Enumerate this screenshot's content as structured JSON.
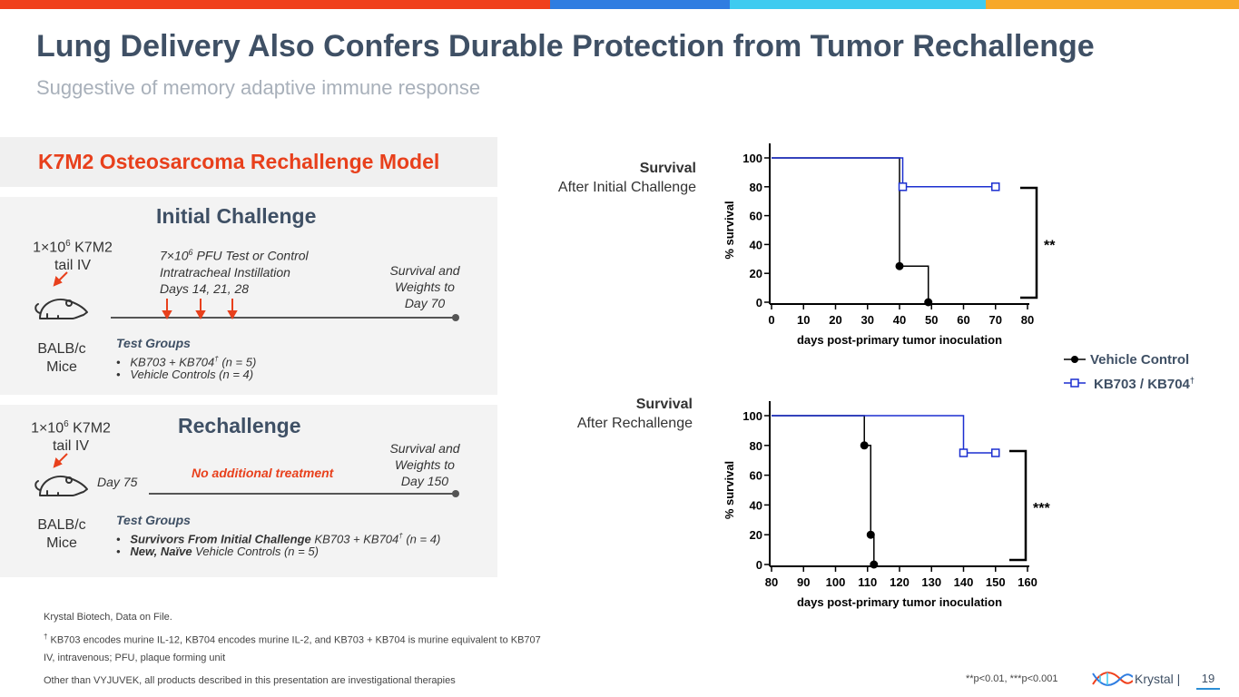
{
  "header": {
    "title": "Lung Delivery Also Confers Durable Protection from Tumor Rechallenge",
    "subtitle": "Suggestive of memory adaptive immune response",
    "topbar_colors": [
      "#f0401c",
      "#2f7de1",
      "#3ecbf0",
      "#f7a829"
    ]
  },
  "model": {
    "title": "K7M2 Osteosarcoma Rechallenge Model"
  },
  "initial": {
    "heading": "Initial Challenge",
    "dose_line1": "1×10",
    "dose_sup": "6",
    "dose_line1_rest": " K7M2",
    "dose_line2": "tail IV",
    "treat_line1": "7×10",
    "treat_sup": "6",
    "treat_line1_rest": " PFU Test or Control",
    "treat_line2": "Intratracheal Instillation",
    "treat_line3": "Days 14, 21, 28",
    "survival_line1": "Survival and",
    "survival_line2": "Weights to",
    "survival_line3": "Day 70",
    "mice_line1": "BALB/c",
    "mice_line2": "Mice",
    "groups_title": "Test Groups",
    "group1": "KB703 + KB704",
    "group1_sup": "†",
    "group1_rest": " (n = 5)",
    "group2": "Vehicle Controls (n = 4)"
  },
  "rechallenge": {
    "heading": "Rechallenge",
    "dose_line1": "1×10",
    "dose_sup": "6",
    "dose_line1_rest": " K7M2",
    "dose_line2": "tail IV",
    "day_label": "Day 75",
    "no_treatment": "No additional treatment",
    "survival_line1": "Survival and",
    "survival_line2": "Weights to",
    "survival_line3": "Day 150",
    "mice_line1": "BALB/c",
    "mice_line2": "Mice",
    "groups_title": "Test Groups",
    "group1_bold": "Survivors From Initial Challenge",
    "group1_rest": " KB703 + KB704",
    "group1_sup": "†",
    "group1_end": " (n = 4)",
    "group2_bold": "New, Naïve",
    "group2_rest": " Vehicle Controls (n = 5)"
  },
  "chart_labels": {
    "c1_line1": "Survival",
    "c1_line2": "After Initial Challenge",
    "c2_line1": "Survival",
    "c2_line2": "After Rechallenge"
  },
  "legend": {
    "vehicle": "Vehicle Control",
    "kb": "KB703 / KB704",
    "kb_sup": "†"
  },
  "chart_data": [
    {
      "type": "line",
      "title": "",
      "xlabel": "days post-primary tumor inoculation",
      "ylabel": "% survival",
      "xlim": [
        0,
        80
      ],
      "ylim": [
        0,
        100
      ],
      "xticks": [
        0,
        10,
        20,
        30,
        40,
        50,
        60,
        70,
        80
      ],
      "yticks": [
        0,
        20,
        40,
        60,
        80,
        100
      ],
      "significance": "**",
      "series": [
        {
          "name": "Vehicle Control",
          "color": "#000000",
          "marker": "circle",
          "steps": [
            [
              0,
              100
            ],
            [
              40,
              100
            ],
            [
              40,
              25
            ],
            [
              49,
              25
            ],
            [
              49,
              0
            ]
          ],
          "points": [
            [
              40,
              25
            ],
            [
              49,
              0
            ]
          ]
        },
        {
          "name": "KB703 / KB704",
          "color": "#1b2fd0",
          "marker": "square",
          "steps": [
            [
              0,
              100
            ],
            [
              41,
              100
            ],
            [
              41,
              80
            ],
            [
              70,
              80
            ]
          ],
          "points": [
            [
              41,
              80
            ],
            [
              70,
              80
            ]
          ]
        }
      ]
    },
    {
      "type": "line",
      "title": "",
      "xlabel": "days post-primary tumor inoculation",
      "ylabel": "% survival",
      "xlim": [
        80,
        160
      ],
      "ylim": [
        0,
        100
      ],
      "xticks": [
        80,
        90,
        100,
        110,
        120,
        130,
        140,
        150,
        160
      ],
      "yticks": [
        0,
        20,
        40,
        60,
        80,
        100
      ],
      "significance": "***",
      "series": [
        {
          "name": "Vehicle Control",
          "color": "#000000",
          "marker": "circle",
          "steps": [
            [
              80,
              100
            ],
            [
              109,
              100
            ],
            [
              109,
              80
            ],
            [
              111,
              80
            ],
            [
              111,
              20
            ],
            [
              112,
              20
            ],
            [
              112,
              0
            ]
          ],
          "points": [
            [
              109,
              80
            ],
            [
              111,
              20
            ],
            [
              112,
              0
            ]
          ]
        },
        {
          "name": "KB703 / KB704",
          "color": "#1b2fd0",
          "marker": "square",
          "steps": [
            [
              80,
              100
            ],
            [
              140,
              100
            ],
            [
              140,
              75
            ],
            [
              150,
              75
            ]
          ],
          "points": [
            [
              140,
              75
            ],
            [
              150,
              75
            ]
          ]
        }
      ]
    }
  ],
  "footer": {
    "source": "Krystal Biotech, Data on File.",
    "note_sup": "†",
    "note": " KB703 encodes murine IL-12, KB704 encodes murine IL-2, and KB703 + KB704 is murine equivalent to KB707",
    "abbrev": "IV, intravenous; PFU, plaque forming unit",
    "disclaimer": "Other than VYJUVEK, all products described in this presentation are investigational therapies",
    "pvalues": "**p<0.01, ***p<0.001",
    "brand": "Krystal |",
    "page": "19"
  }
}
